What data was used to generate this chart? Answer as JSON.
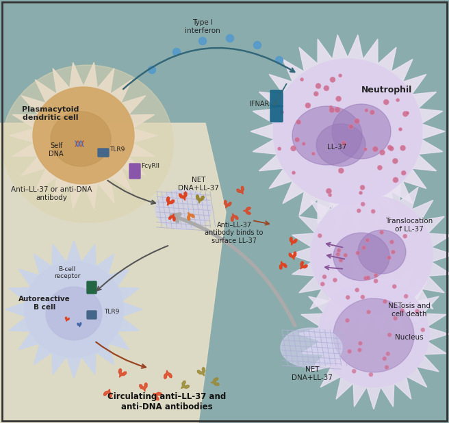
{
  "title": "",
  "background_color": "#c8d8d8",
  "border_color": "#333333",
  "fig_width": 6.56,
  "fig_height": 6.18,
  "labels": {
    "plasmacytoid_dendritic_cell": "Plasmacytoid\ndendritic cell",
    "self_dna": "Self\nDNA",
    "tlr9": "TLR9",
    "fcgrii": "FcγRII",
    "type_i_interferon": "Type I\ninterferon",
    "ifnar": "IFNAR",
    "neutrophil": "Neutrophil",
    "ll37": "LL-37",
    "anti_ll37_or_antidna": "Anti–LL-37 or anti-DNA\nantibody",
    "net_dna_ll37_1": "NET\nDNA+LL-37",
    "anti_ll37_binds": "Anti–LL-37\nantibody binds to\nsurface LL-37",
    "translocation": "Translocation\nof LL-37",
    "netosis": "NETosis and\ncell death",
    "nucleus": "Nucleus",
    "net_dna_ll37_2": "NET\nDNA+LL-37",
    "b_cell_receptor": "B-cell\nreceptor",
    "tlr9_bcell": "TLR9",
    "autoreactive_b": "Autoreactive\nB cell",
    "circulating": "Circulating anti–LL-37 and\nanti-DNA antibodies"
  },
  "colors": {
    "pdc_cell_fill": "#d4a96a",
    "pdc_spikes_fill": "#e8dcc8",
    "neutrophil_fill": "#d8c8e8",
    "neutrophil_nucleus": "#9878b8",
    "b_cell_fill": "#c8d0e8",
    "net_fill": "#c8c8e0",
    "teal_bg": "#8aacac",
    "cream_bg": "#e8e0c8",
    "blue_dots": "#5599cc",
    "pink_dots": "#cc6688",
    "red_antibody": "#dd4422",
    "olive_antibody": "#998833",
    "orange_antibody": "#dd7733",
    "purple_arrow": "#885599",
    "dark_teal_arrow": "#336677",
    "brown_arrow": "#994422",
    "gray_arrow": "#888888",
    "receptor_purple": "#8855aa",
    "receptor_teal": "#336688"
  }
}
